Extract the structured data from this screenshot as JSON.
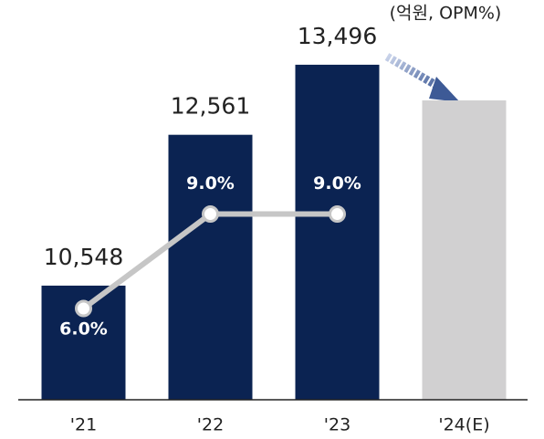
{
  "chart_data": {
    "type": "bar_line",
    "unit_note": "(억원, OPM%)",
    "categories": [
      "'21",
      "'22",
      "'23",
      "'24(E)"
    ],
    "bars": {
      "values": [
        10548,
        12561,
        13496,
        13020
      ],
      "value_labels": [
        "10,548",
        "12,561",
        "13,496",
        null
      ],
      "colors": [
        "#0b2352",
        "#0b2352",
        "#0b2352",
        "#d1d0d1"
      ]
    },
    "line": {
      "values": [
        6.0,
        9.0,
        9.0,
        null
      ],
      "value_labels": [
        "6.0%",
        "9.0%",
        "9.0%",
        null
      ],
      "color": "#c6c6c6",
      "axis": "y2"
    },
    "ylim": [
      9025,
      13897
    ],
    "y2lim": [
      3.1,
      14.7
    ]
  }
}
